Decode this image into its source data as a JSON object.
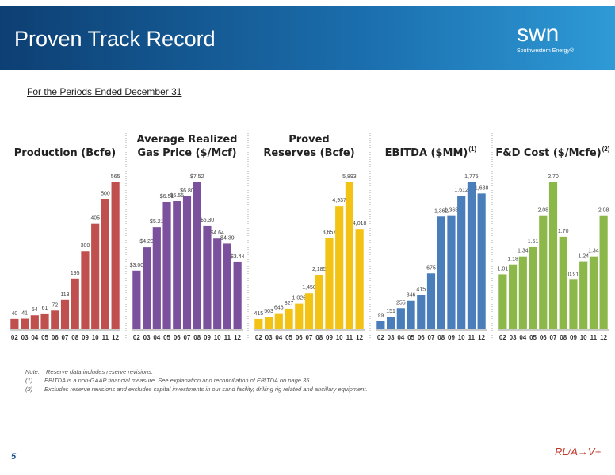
{
  "header": {
    "title": "Proven Track Record",
    "logo": "swn",
    "logo_subtitle": "Southwestern Energy®"
  },
  "subtitle": "For the Periods Ended December 31",
  "chart_data": [
    {
      "type": "bar",
      "title": [
        "Production (Bcfe)"
      ],
      "color": "#c0504d",
      "categories": [
        "02",
        "03",
        "04",
        "05",
        "06",
        "07",
        "08",
        "09",
        "10",
        "11",
        "12"
      ],
      "values": [
        40,
        41,
        54,
        61,
        72,
        113,
        195,
        300,
        405,
        500,
        565
      ]
    },
    {
      "type": "bar",
      "title": [
        "Average Realized",
        "Gas Price ($/Mcf)"
      ],
      "color": "#7b519d",
      "categories": [
        "02",
        "03",
        "04",
        "05",
        "06",
        "07",
        "08",
        "09",
        "10",
        "11",
        "12"
      ],
      "values": [
        3.0,
        4.2,
        5.21,
        6.51,
        6.55,
        6.8,
        7.52,
        5.3,
        4.64,
        4.39,
        3.44
      ],
      "value_labels": [
        "$3.00",
        "$4.20",
        "$5.21",
        "$6.51",
        "$6.55",
        "$6.80",
        "$7.52",
        "$5.30",
        "$4.64",
        "$4.39",
        "$3.44"
      ]
    },
    {
      "type": "bar",
      "title": [
        "Proved",
        "Reserves (Bcfe)"
      ],
      "color": "#f2c314",
      "categories": [
        "02",
        "03",
        "04",
        "05",
        "06",
        "07",
        "08",
        "09",
        "10",
        "11",
        "12"
      ],
      "values": [
        415,
        503,
        646,
        827,
        1026,
        1450,
        2185,
        3657,
        4937,
        5893,
        4018
      ],
      "value_labels": [
        "415",
        "503",
        "646",
        "827",
        "1,026",
        "1,450",
        "2,185",
        "3,657",
        "4,937",
        "5,893",
        "4,018"
      ]
    },
    {
      "type": "bar",
      "title": [
        "EBITDA ($MM)"
      ],
      "title_note": "(1)",
      "color": "#4a7ebb",
      "categories": [
        "02",
        "03",
        "04",
        "05",
        "06",
        "07",
        "08",
        "09",
        "10",
        "11",
        "12"
      ],
      "values": [
        99,
        151,
        255,
        346,
        415,
        675,
        1362,
        1368,
        1612,
        1775,
        1638
      ],
      "value_labels": [
        "99",
        "151",
        "255",
        "346",
        "415",
        "675",
        "1,362",
        "1,368",
        "1,612",
        "1,775",
        "1,638"
      ]
    },
    {
      "type": "bar",
      "title": [
        "F&D Cost ($/Mcfe)"
      ],
      "title_note": "(2)",
      "color": "#8cb84a",
      "categories": [
        "02",
        "03",
        "04",
        "05",
        "06",
        "07",
        "08",
        "09",
        "10",
        "11",
        "12"
      ],
      "values": [
        1.01,
        1.18,
        1.34,
        1.51,
        2.08,
        2.7,
        1.7,
        0.91,
        1.24,
        1.34,
        2.08
      ],
      "value_labels": [
        "1.01",
        "1.18",
        "1.34",
        "1.51",
        "2.08",
        "2.70",
        "1.70",
        "0.91",
        "1.24",
        "1.34",
        "2.08"
      ]
    }
  ],
  "notes": [
    {
      "marker": "Note:",
      "text": "Reserve data includes reserve revisions."
    },
    {
      "marker": "(1)",
      "text": "EBITDA is a non-GAAP financial measure. See explanation and reconciliation of EBITDA on page 35."
    },
    {
      "marker": "(2)",
      "text": "Excludes reserve revisions and excludes capital investments in our sand facility, drilling rig related and ancillary equipment."
    }
  ],
  "page_number": "5",
  "footer_logo": "RL/A→V+"
}
